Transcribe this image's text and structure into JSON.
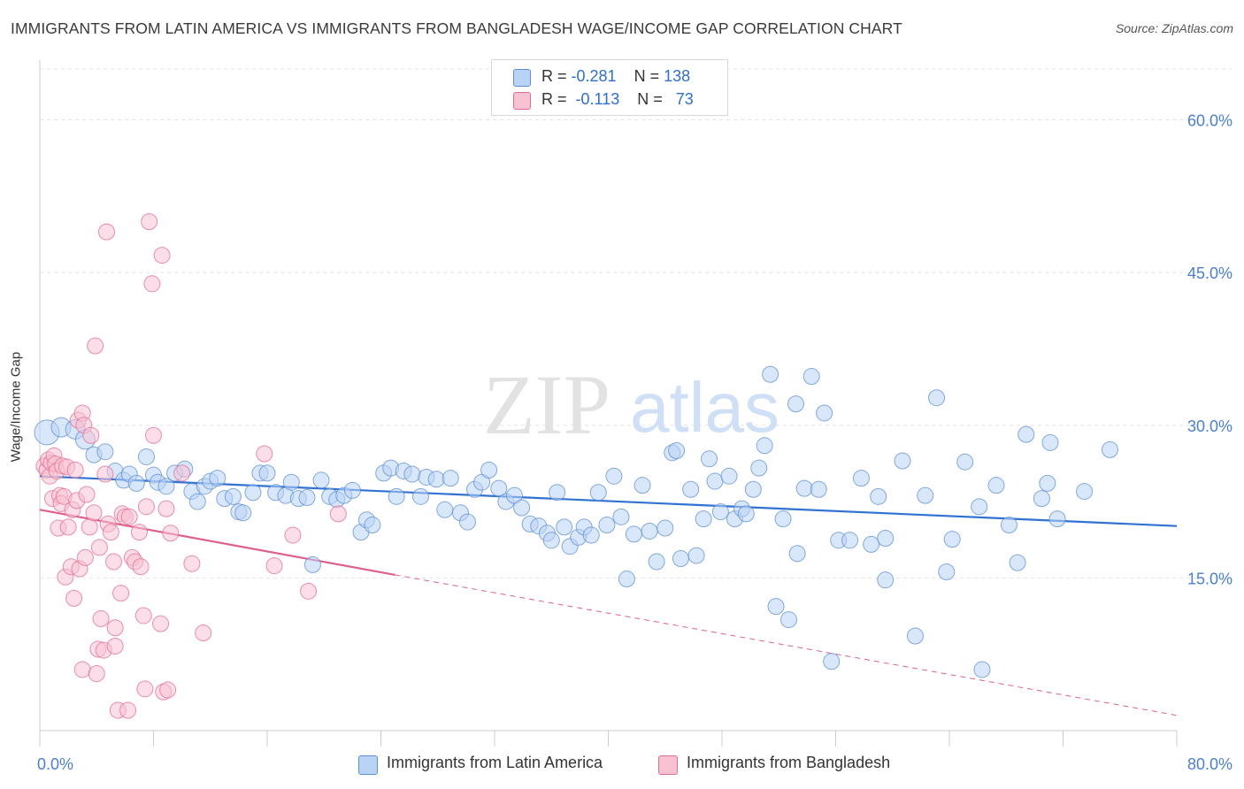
{
  "title": "IMMIGRANTS FROM LATIN AMERICA VS IMMIGRANTS FROM BANGLADESH WAGE/INCOME GAP CORRELATION CHART",
  "source": "Source: ZipAtlas.com",
  "watermark": {
    "zip": "ZIP",
    "atlas": "atlas"
  },
  "colors": {
    "blue": "#5b8fd6",
    "blue_fill": "#b9d3f5",
    "pink": "#e56b93",
    "pink_fill": "#f7c3d3",
    "tick_text": "#4a7fd4",
    "grid": "#e5e5e5"
  },
  "legend_top": {
    "rows": [
      {
        "r_label": "R =",
        "r_value": "-0.281",
        "n_label": "N =",
        "n_value": "138"
      },
      {
        "r_label": "R =",
        "r_value": "-0.113",
        "n_label": "N =",
        "n_value": "73"
      }
    ]
  },
  "legend_bottom": [
    "Immigrants from Latin America",
    "Immigrants from Bangladesh"
  ],
  "chart_data": {
    "type": "scatter",
    "title": "IMMIGRANTS FROM LATIN AMERICA VS IMMIGRANTS FROM BANGLADESH WAGE/INCOME GAP CORRELATION CHART",
    "xlabel": "",
    "ylabel": "Wage/Income Gap",
    "xlim": [
      0,
      80
    ],
    "ylim": [
      0,
      65
    ],
    "x_tick_labels": [
      "0.0%",
      "80.0%"
    ],
    "y_ticks": [
      15,
      30,
      45,
      60
    ],
    "y_tick_labels": [
      "15.0%",
      "30.0%",
      "45.0%",
      "60.0%"
    ],
    "grid": true,
    "legend_position": "top-center",
    "series": [
      {
        "name": "Immigrants from Latin America",
        "color": "#5b8fd6",
        "trend": {
          "x0": 0,
          "y0": 25.0,
          "x1": 80,
          "y1": 20.1
        },
        "points": [
          [
            0.5,
            29.3
          ],
          [
            1.5,
            29.8
          ],
          [
            2.5,
            29.6
          ],
          [
            3.2,
            28.6
          ],
          [
            3.8,
            27.1
          ],
          [
            4.6,
            27.4
          ],
          [
            5.3,
            25.5
          ],
          [
            5.9,
            24.6
          ],
          [
            6.3,
            25.2
          ],
          [
            6.8,
            24.3
          ],
          [
            7.5,
            26.9
          ],
          [
            8.0,
            25.1
          ],
          [
            8.3,
            24.4
          ],
          [
            8.9,
            24.0
          ],
          [
            9.5,
            25.3
          ],
          [
            10.2,
            25.7
          ],
          [
            10.7,
            23.5
          ],
          [
            11.1,
            22.5
          ],
          [
            11.6,
            24.0
          ],
          [
            12.0,
            24.5
          ],
          [
            12.5,
            24.8
          ],
          [
            13.0,
            22.8
          ],
          [
            13.6,
            23.0
          ],
          [
            14.0,
            21.5
          ],
          [
            14.3,
            21.4
          ],
          [
            15.0,
            23.4
          ],
          [
            15.5,
            25.3
          ],
          [
            16.0,
            25.3
          ],
          [
            16.6,
            23.4
          ],
          [
            17.3,
            23.1
          ],
          [
            17.7,
            24.4
          ],
          [
            18.2,
            22.8
          ],
          [
            18.8,
            22.9
          ],
          [
            19.2,
            16.3
          ],
          [
            19.8,
            24.6
          ],
          [
            20.4,
            23.0
          ],
          [
            20.9,
            22.7
          ],
          [
            21.4,
            23.1
          ],
          [
            22.0,
            23.6
          ],
          [
            22.6,
            19.5
          ],
          [
            23.0,
            20.7
          ],
          [
            23.4,
            20.2
          ],
          [
            24.2,
            25.3
          ],
          [
            24.7,
            25.8
          ],
          [
            25.1,
            23.0
          ],
          [
            25.6,
            25.5
          ],
          [
            26.2,
            25.2
          ],
          [
            26.8,
            23.0
          ],
          [
            27.2,
            24.9
          ],
          [
            27.9,
            24.7
          ],
          [
            28.5,
            21.7
          ],
          [
            28.9,
            24.8
          ],
          [
            29.6,
            21.4
          ],
          [
            30.1,
            20.5
          ],
          [
            30.6,
            23.7
          ],
          [
            31.1,
            24.4
          ],
          [
            31.6,
            25.6
          ],
          [
            32.3,
            23.8
          ],
          [
            32.8,
            22.5
          ],
          [
            33.4,
            23.1
          ],
          [
            33.9,
            21.9
          ],
          [
            34.5,
            20.3
          ],
          [
            35.1,
            20.1
          ],
          [
            35.7,
            19.4
          ],
          [
            36.0,
            18.7
          ],
          [
            36.4,
            23.4
          ],
          [
            36.9,
            20.0
          ],
          [
            37.3,
            18.1
          ],
          [
            37.9,
            19.0
          ],
          [
            38.3,
            20.0
          ],
          [
            38.8,
            19.2
          ],
          [
            39.3,
            23.4
          ],
          [
            39.9,
            20.2
          ],
          [
            40.4,
            25.0
          ],
          [
            40.9,
            21.0
          ],
          [
            41.3,
            14.9
          ],
          [
            41.8,
            19.3
          ],
          [
            42.4,
            24.1
          ],
          [
            42.9,
            19.6
          ],
          [
            43.4,
            16.6
          ],
          [
            44.0,
            19.9
          ],
          [
            44.5,
            27.3
          ],
          [
            44.8,
            27.5
          ],
          [
            45.1,
            16.9
          ],
          [
            45.8,
            23.7
          ],
          [
            46.2,
            17.2
          ],
          [
            46.7,
            20.8
          ],
          [
            47.1,
            26.7
          ],
          [
            47.5,
            24.5
          ],
          [
            47.9,
            21.5
          ],
          [
            48.5,
            25.0
          ],
          [
            48.9,
            20.8
          ],
          [
            49.4,
            21.8
          ],
          [
            49.7,
            21.3
          ],
          [
            50.2,
            23.7
          ],
          [
            50.6,
            25.8
          ],
          [
            51.0,
            28.0
          ],
          [
            51.4,
            35.0
          ],
          [
            51.8,
            12.2
          ],
          [
            52.3,
            20.8
          ],
          [
            52.7,
            10.9
          ],
          [
            53.2,
            32.1
          ],
          [
            53.3,
            17.4
          ],
          [
            53.8,
            23.8
          ],
          [
            54.3,
            34.8
          ],
          [
            54.8,
            23.7
          ],
          [
            55.2,
            31.2
          ],
          [
            55.7,
            6.8
          ],
          [
            56.2,
            18.7
          ],
          [
            57.0,
            18.7
          ],
          [
            57.8,
            24.8
          ],
          [
            58.5,
            18.3
          ],
          [
            59.0,
            23.0
          ],
          [
            59.5,
            14.8
          ],
          [
            59.5,
            18.9
          ],
          [
            60.7,
            26.5
          ],
          [
            61.6,
            9.3
          ],
          [
            62.3,
            23.1
          ],
          [
            63.1,
            32.7
          ],
          [
            63.8,
            15.6
          ],
          [
            64.2,
            18.8
          ],
          [
            65.1,
            26.4
          ],
          [
            66.1,
            22.0
          ],
          [
            66.3,
            6.0
          ],
          [
            67.3,
            24.1
          ],
          [
            68.2,
            20.2
          ],
          [
            68.8,
            16.5
          ],
          [
            69.4,
            29.1
          ],
          [
            70.5,
            22.8
          ],
          [
            70.9,
            24.3
          ],
          [
            71.1,
            28.3
          ],
          [
            71.6,
            20.8
          ],
          [
            73.5,
            23.5
          ],
          [
            75.3,
            27.6
          ]
        ]
      },
      {
        "name": "Immigrants from Bangladesh",
        "color": "#e56b93",
        "trend": {
          "x0": 0,
          "y0": 21.7,
          "x1": 25,
          "y1": 15.3,
          "dash_x1": 80,
          "dash_y1": 1.5
        },
        "points": [
          [
            0.3,
            26.0
          ],
          [
            0.5,
            25.6
          ],
          [
            0.6,
            26.6
          ],
          [
            0.7,
            25.0
          ],
          [
            0.8,
            26.3
          ],
          [
            0.9,
            22.8
          ],
          [
            1.0,
            27.0
          ],
          [
            1.1,
            26.2
          ],
          [
            1.2,
            25.5
          ],
          [
            1.3,
            19.9
          ],
          [
            1.4,
            23.1
          ],
          [
            1.5,
            22.3
          ],
          [
            1.6,
            26.0
          ],
          [
            1.7,
            23.0
          ],
          [
            1.8,
            15.1
          ],
          [
            1.9,
            25.9
          ],
          [
            2.0,
            20.0
          ],
          [
            2.2,
            16.1
          ],
          [
            2.3,
            21.7
          ],
          [
            2.4,
            13.0
          ],
          [
            2.5,
            25.6
          ],
          [
            2.6,
            22.6
          ],
          [
            2.7,
            30.5
          ],
          [
            2.8,
            15.9
          ],
          [
            3.0,
            31.2
          ],
          [
            3.0,
            6.0
          ],
          [
            3.1,
            30.0
          ],
          [
            3.2,
            17.0
          ],
          [
            3.3,
            23.2
          ],
          [
            3.5,
            20.0
          ],
          [
            3.6,
            29.0
          ],
          [
            3.8,
            21.4
          ],
          [
            3.9,
            37.8
          ],
          [
            4.0,
            5.6
          ],
          [
            4.1,
            8.0
          ],
          [
            4.2,
            18.0
          ],
          [
            4.3,
            11.0
          ],
          [
            4.5,
            7.9
          ],
          [
            4.6,
            25.2
          ],
          [
            4.7,
            49.0
          ],
          [
            4.8,
            20.3
          ],
          [
            5.0,
            19.5
          ],
          [
            5.2,
            16.6
          ],
          [
            5.3,
            10.1
          ],
          [
            5.3,
            8.3
          ],
          [
            5.5,
            2.0
          ],
          [
            5.7,
            13.5
          ],
          [
            5.8,
            21.3
          ],
          [
            6.0,
            21.0
          ],
          [
            6.2,
            2.0
          ],
          [
            6.3,
            21.0
          ],
          [
            6.5,
            17.0
          ],
          [
            6.7,
            16.6
          ],
          [
            7.0,
            19.5
          ],
          [
            7.1,
            16.1
          ],
          [
            7.3,
            11.3
          ],
          [
            7.4,
            4.1
          ],
          [
            7.5,
            22.0
          ],
          [
            7.7,
            50.0
          ],
          [
            7.9,
            43.9
          ],
          [
            8.0,
            29.0
          ],
          [
            8.5,
            10.5
          ],
          [
            8.6,
            46.7
          ],
          [
            8.7,
            3.8
          ],
          [
            8.9,
            21.8
          ],
          [
            9.0,
            4.0
          ],
          [
            9.2,
            19.4
          ],
          [
            10.0,
            25.3
          ],
          [
            10.7,
            16.4
          ],
          [
            11.5,
            9.6
          ],
          [
            15.8,
            27.2
          ],
          [
            16.5,
            16.2
          ],
          [
            17.8,
            19.2
          ],
          [
            18.9,
            13.7
          ],
          [
            21.0,
            21.3
          ]
        ]
      }
    ]
  }
}
